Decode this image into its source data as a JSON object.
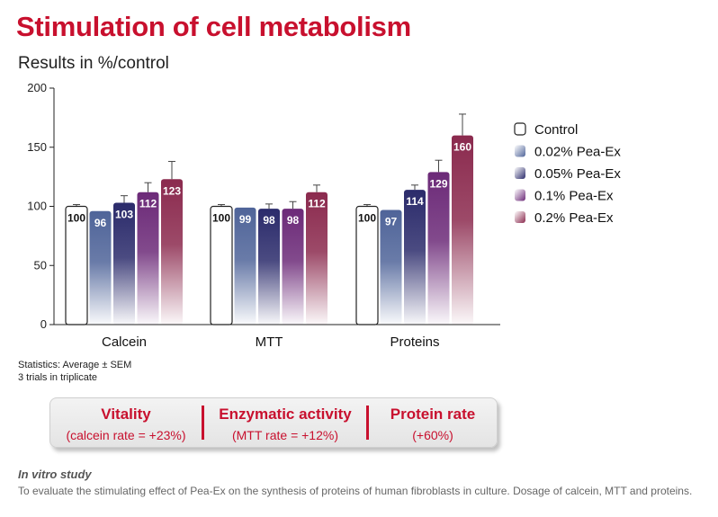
{
  "title": "Stimulation of cell metabolism",
  "subtitle": "Results in %/control",
  "chart_data": {
    "type": "bar",
    "categories": [
      "Calcein",
      "MTT",
      "Proteins"
    ],
    "series": [
      {
        "name": "Control",
        "values": [
          100,
          100,
          100
        ],
        "errors": [
          1.5,
          1.5,
          1.5
        ],
        "color": "#ffffff"
      },
      {
        "name": "0.02% Pea-Ex",
        "values": [
          96,
          99,
          97
        ],
        "errors": [
          0,
          0,
          0
        ],
        "color": "#4f6499"
      },
      {
        "name": "0.05% Pea-Ex",
        "values": [
          103,
          98,
          114
        ],
        "errors": [
          6,
          4,
          4
        ],
        "color": "#2b2b6b"
      },
      {
        "name": "0.1% Pea-Ex",
        "values": [
          112,
          98,
          129
        ],
        "errors": [
          8,
          6,
          10
        ],
        "color": "#6c2a78"
      },
      {
        "name": "0.2% Pea-Ex",
        "values": [
          123,
          112,
          160
        ],
        "errors": [
          15,
          6,
          18
        ],
        "color": "#8b2a4e"
      }
    ],
    "data_labels": [
      [
        "100",
        "96",
        "103",
        "112",
        "123"
      ],
      [
        "100",
        "99",
        "98",
        "98",
        "112"
      ],
      [
        "100",
        "97",
        "114",
        "129",
        "160"
      ]
    ],
    "yticks": [
      "0",
      "50",
      "100",
      "150",
      "200"
    ],
    "ylim": [
      0,
      200
    ],
    "legend_position": "right"
  },
  "stats": {
    "line1": "Statistics: Average ± SEM",
    "line2": "3 trials in triplicate"
  },
  "summary": [
    {
      "heading": "Vitality",
      "detail": "(calcein rate = +23%)"
    },
    {
      "heading": "Enzymatic activity",
      "detail": "(MTT rate = +12%)"
    },
    {
      "heading": "Protein rate",
      "detail": "(+60%)"
    }
  ],
  "study": {
    "title": "In vitro study",
    "text": "To evaluate the stimulating effect of Pea-Ex on the synthesis of proteins of human fibroblasts in culture. Dosage of calcein, MTT and proteins."
  }
}
